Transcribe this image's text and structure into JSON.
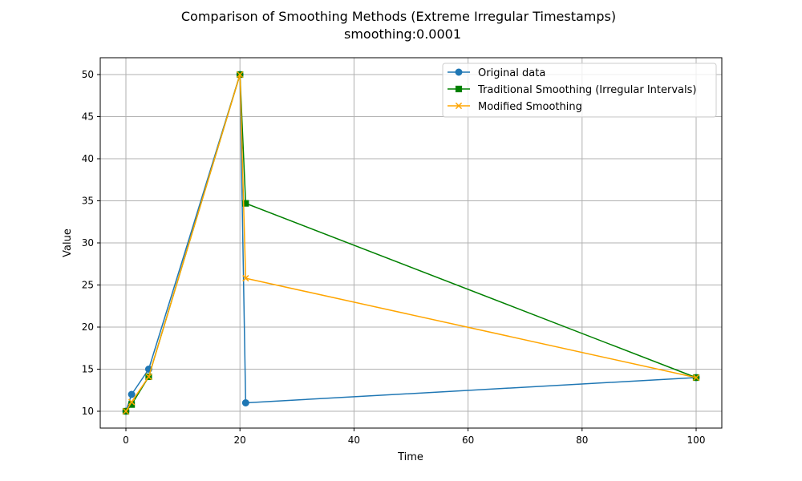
{
  "chart_data": {
    "type": "line",
    "title": "Comparison of Smoothing Methods (Extreme Irregular Timestamps)",
    "subtitle": "smoothing:0.0001",
    "xlabel": "Time",
    "ylabel": "Value",
    "xlim": [
      -4.5,
      104.5
    ],
    "ylim": [
      8,
      52
    ],
    "xticks": [
      0,
      20,
      40,
      60,
      80,
      100
    ],
    "yticks": [
      10,
      15,
      20,
      25,
      30,
      35,
      40,
      45,
      50
    ],
    "grid": true,
    "legend_position": "top-right",
    "series": [
      {
        "name": "Original data",
        "color": "#1f77b4",
        "marker": "circle",
        "x": [
          0,
          1,
          4,
          20,
          21,
          100
        ],
        "y": [
          10,
          12,
          15,
          50,
          11,
          14
        ]
      },
      {
        "name": "Traditional Smoothing (Irregular Intervals)",
        "color": "#008000",
        "marker": "square",
        "x": [
          0,
          1,
          4,
          20,
          21,
          100
        ],
        "y": [
          10,
          10.8,
          14.1,
          50,
          34.7,
          14
        ]
      },
      {
        "name": "Modified Smoothing",
        "color": "#ffa500",
        "marker": "x",
        "x": [
          0,
          1,
          4,
          20,
          21,
          100
        ],
        "y": [
          10,
          11.1,
          14.1,
          50,
          25.8,
          14
        ]
      }
    ]
  }
}
